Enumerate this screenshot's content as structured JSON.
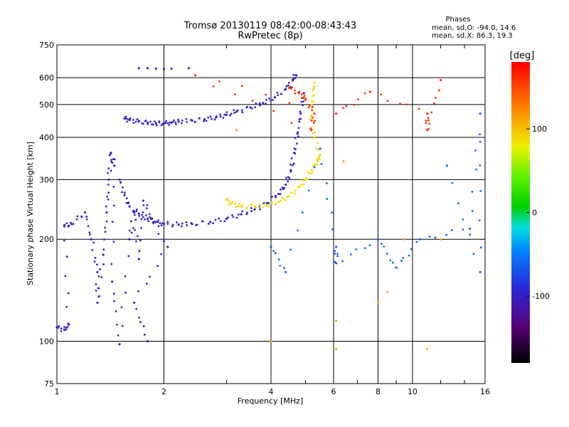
{
  "chart_data": {
    "type": "scatter",
    "title": "Tromsø 20130119 08:42:00-08:43:43",
    "subtitle": "RwPretec (8p)",
    "stats": {
      "heading": "Phases",
      "line1": "mean, sd,O: -94.0, 14.6",
      "line2": "mean, sd,X:  86.3, 19.3"
    },
    "xlabel": "Frequency [MHz]",
    "ylabel": "Stationary phase Virtual Height [km]",
    "x_scale": "log",
    "y_scale": "log",
    "xlim": [
      1,
      16
    ],
    "ylim": [
      75,
      750
    ],
    "x_ticks": [
      1,
      2,
      4,
      6,
      8,
      10,
      16
    ],
    "y_ticks": [
      75,
      100,
      200,
      300,
      400,
      500,
      600,
      750
    ],
    "grid": true,
    "colorbar": {
      "label": "[deg]",
      "range": [
        -180,
        180
      ],
      "ticks": [
        100,
        0,
        -100
      ]
    },
    "series": [
      {
        "phase": -95,
        "points": [
          [
            1.7,
            640
          ],
          [
            1.8,
            640
          ],
          [
            1.9,
            638
          ],
          [
            2.0,
            636
          ],
          [
            2.1,
            638
          ],
          [
            2.35,
            640
          ]
        ]
      },
      {
        "phase": -95,
        "points": [
          [
            1.55,
            455
          ],
          [
            1.6,
            450
          ],
          [
            1.7,
            445
          ],
          [
            1.8,
            442
          ],
          [
            1.9,
            440
          ],
          [
            2.0,
            440
          ],
          [
            2.1,
            442
          ],
          [
            2.2,
            445
          ],
          [
            2.4,
            448
          ],
          [
            2.6,
            452
          ],
          [
            2.8,
            458
          ],
          [
            3.0,
            466
          ],
          [
            3.2,
            476
          ],
          [
            3.5,
            490
          ],
          [
            3.8,
            505
          ],
          [
            4.1,
            525
          ],
          [
            4.4,
            555
          ],
          [
            4.6,
            590
          ],
          [
            4.7,
            610
          ]
        ]
      },
      {
        "phase": -95,
        "points": [
          [
            1.5,
            300
          ],
          [
            1.55,
            270
          ],
          [
            1.6,
            250
          ],
          [
            1.7,
            238
          ],
          [
            1.8,
            230
          ],
          [
            1.9,
            225
          ],
          [
            2.0,
            222
          ],
          [
            2.2,
            221
          ],
          [
            2.4,
            222
          ],
          [
            2.7,
            225
          ],
          [
            3.0,
            230
          ],
          [
            3.3,
            237
          ],
          [
            3.6,
            245
          ],
          [
            3.9,
            256
          ],
          [
            4.2,
            272
          ],
          [
            4.4,
            290
          ],
          [
            4.55,
            320
          ],
          [
            4.65,
            360
          ],
          [
            4.75,
            410
          ],
          [
            4.85,
            470
          ],
          [
            4.95,
            540
          ]
        ]
      },
      {
        "phase": -100,
        "points": [
          [
            1.0,
            110
          ],
          [
            1.05,
            108
          ],
          [
            1.08,
            112
          ],
          [
            1.05,
            220
          ],
          [
            1.1,
            222
          ],
          [
            1.2,
            240
          ],
          [
            1.25,
            200
          ],
          [
            1.3,
            160
          ],
          [
            1.3,
            130
          ],
          [
            1.35,
            180
          ],
          [
            1.38,
            240
          ],
          [
            1.4,
            300
          ],
          [
            1.42,
            360
          ],
          [
            1.45,
            330
          ],
          [
            1.43,
            150
          ],
          [
            1.5,
            98
          ],
          [
            1.6,
            200
          ],
          [
            1.65,
            240
          ],
          [
            1.7,
            175
          ],
          [
            1.75,
            260
          ],
          [
            1.85,
            230
          ],
          [
            2.05,
            190
          ],
          [
            1.65,
            130
          ],
          [
            1.8,
            100
          ]
        ]
      },
      {
        "phase": 90,
        "points": [
          [
            3.0,
            262
          ],
          [
            3.1,
            255
          ],
          [
            3.3,
            250
          ],
          [
            3.6,
            250
          ],
          [
            3.9,
            252
          ],
          [
            4.2,
            258
          ],
          [
            4.5,
            268
          ],
          [
            4.8,
            285
          ],
          [
            5.0,
            300
          ],
          [
            5.2,
            320
          ],
          [
            5.4,
            340
          ],
          [
            5.5,
            355
          ],
          [
            5.3,
            400
          ],
          [
            5.2,
            460
          ],
          [
            5.25,
            530
          ],
          [
            5.3,
            580
          ]
        ]
      },
      {
        "phase": 160,
        "points": [
          [
            4.5,
            560
          ],
          [
            4.8,
            540
          ],
          [
            5.0,
            520
          ],
          [
            5.3,
            470
          ],
          [
            5.2,
            420
          ],
          [
            2.45,
            610
          ],
          [
            6.1,
            470
          ],
          [
            7.6,
            545
          ],
          [
            11.0,
            470
          ],
          [
            11.0,
            420
          ],
          [
            12.0,
            590
          ]
        ]
      },
      {
        "phase": -60,
        "points": [
          [
            4.0,
            190
          ],
          [
            4.4,
            160
          ],
          [
            5.5,
            370
          ],
          [
            6.1,
            190
          ],
          [
            6.1,
            170
          ],
          [
            8.0,
            200
          ],
          [
            9.0,
            165
          ],
          [
            10.5,
            200
          ],
          [
            14.5,
            215
          ],
          [
            15.5,
            470
          ],
          [
            15.5,
            160
          ],
          [
            12.5,
            330
          ]
        ]
      },
      {
        "phase": 110,
        "points": [
          [
            6.1,
            95
          ],
          [
            6.1,
            115
          ],
          [
            8.0,
            130
          ],
          [
            8.5,
            140
          ],
          [
            9.5,
            200
          ],
          [
            11.0,
            95
          ],
          [
            12.0,
            200
          ],
          [
            3.2,
            420
          ],
          [
            4.0,
            100
          ],
          [
            6.4,
            340
          ]
        ]
      }
    ]
  }
}
